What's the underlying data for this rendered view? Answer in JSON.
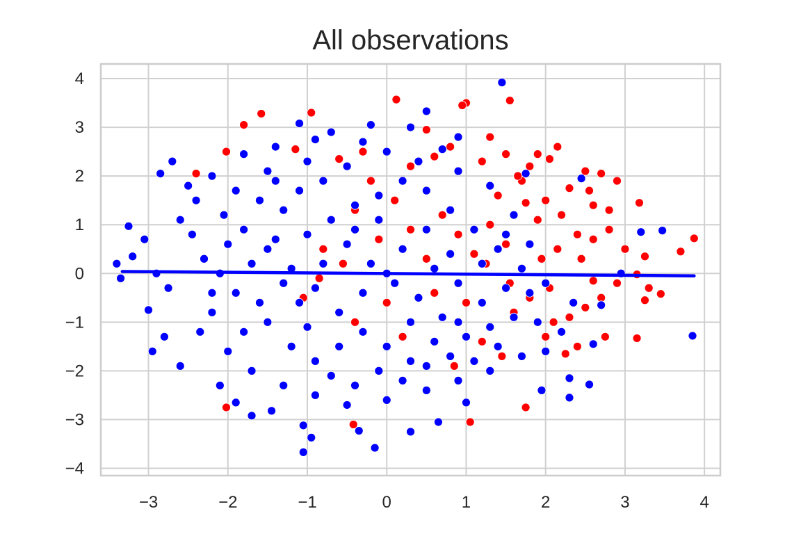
{
  "chart_data": {
    "type": "scatter",
    "title": "All observations",
    "xlabel": "",
    "ylabel": "",
    "xlim": [
      -3.6,
      4.2
    ],
    "ylim": [
      -4.15,
      4.3
    ],
    "grid": true,
    "legend": "none",
    "x_ticks": [
      -3,
      -2,
      -1,
      0,
      1,
      2,
      3,
      4
    ],
    "x_tick_labels": [
      "−3",
      "−2",
      "−1",
      "0",
      "1",
      "2",
      "3",
      "4"
    ],
    "y_ticks": [
      -4,
      -3,
      -2,
      -1,
      0,
      1,
      2,
      3,
      4
    ],
    "y_tick_labels": [
      "−4",
      "−3",
      "−2",
      "−1",
      "0",
      "1",
      "2",
      "3",
      "4"
    ],
    "colors": {
      "class_red": "#ff0000",
      "class_blue": "#0000ff",
      "grid": "#d0d0d0",
      "frame": "#cccccc"
    },
    "series": [
      {
        "color": "#ff0000",
        "points": [
          [
            1.0,
            3.5
          ],
          [
            1.55,
            3.55
          ],
          [
            0.12,
            3.57
          ],
          [
            -0.95,
            3.3
          ],
          [
            -1.58,
            3.28
          ],
          [
            0.95,
            3.45
          ],
          [
            -1.8,
            3.05
          ],
          [
            0.5,
            2.95
          ],
          [
            1.3,
            2.8
          ],
          [
            -2.02,
            2.5
          ],
          [
            2.15,
            2.6
          ],
          [
            2.5,
            2.1
          ],
          [
            2.7,
            2.05
          ],
          [
            2.9,
            1.9
          ],
          [
            3.18,
            1.45
          ],
          [
            2.6,
            1.4
          ],
          [
            2.8,
            1.3
          ],
          [
            2.3,
            1.75
          ],
          [
            2.55,
            1.7
          ],
          [
            1.8,
            2.2
          ],
          [
            2.0,
            1.5
          ],
          [
            1.7,
            1.9
          ],
          [
            1.2,
            2.3
          ],
          [
            0.8,
            2.6
          ],
          [
            0.6,
            2.4
          ],
          [
            0.3,
            2.2
          ],
          [
            -0.3,
            2.5
          ],
          [
            -0.6,
            2.35
          ],
          [
            -1.15,
            2.55
          ],
          [
            -2.4,
            2.05
          ],
          [
            1.5,
            2.45
          ],
          [
            1.9,
            1.1
          ],
          [
            2.2,
            1.2
          ],
          [
            2.4,
            0.8
          ],
          [
            2.6,
            0.7
          ],
          [
            2.8,
            0.9
          ],
          [
            3.0,
            0.5
          ],
          [
            3.25,
            0.35
          ],
          [
            3.7,
            0.45
          ],
          [
            3.87,
            0.72
          ],
          [
            3.15,
            -0.02
          ],
          [
            3.3,
            -0.3
          ],
          [
            3.45,
            -0.42
          ],
          [
            3.25,
            -0.55
          ],
          [
            2.9,
            -0.2
          ],
          [
            2.7,
            -0.5
          ],
          [
            2.5,
            -0.7
          ],
          [
            2.3,
            -0.9
          ],
          [
            2.1,
            -1.0
          ],
          [
            2.0,
            -1.3
          ],
          [
            2.4,
            -1.5
          ],
          [
            2.25,
            -1.65
          ],
          [
            2.75,
            -1.3
          ],
          [
            3.15,
            -1.33
          ],
          [
            1.8,
            -0.5
          ],
          [
            1.6,
            -0.8
          ],
          [
            1.5,
            0.6
          ],
          [
            1.3,
            1.0
          ],
          [
            1.1,
            0.4
          ],
          [
            0.9,
            0.8
          ],
          [
            0.7,
            1.2
          ],
          [
            0.5,
            0.3
          ],
          [
            0.3,
            0.9
          ],
          [
            0.1,
            1.5
          ],
          [
            -0.1,
            0.7
          ],
          [
            -0.2,
            1.9
          ],
          [
            -0.4,
            1.3
          ],
          [
            -0.55,
            0.2
          ],
          [
            -0.8,
            0.5
          ],
          [
            -0.85,
            -0.1
          ],
          [
            -1.05,
            -0.5
          ],
          [
            -0.4,
            -1.0
          ],
          [
            0.0,
            -0.6
          ],
          [
            0.2,
            -1.3
          ],
          [
            0.6,
            -0.4
          ],
          [
            1.0,
            -0.6
          ],
          [
            1.2,
            -1.4
          ],
          [
            0.85,
            -1.9
          ],
          [
            1.45,
            -1.7
          ],
          [
            -2.02,
            -2.75
          ],
          [
            -0.42,
            -3.1
          ],
          [
            1.05,
            -3.05
          ],
          [
            1.75,
            -2.75
          ],
          [
            1.9,
            2.45
          ],
          [
            2.05,
            2.35
          ],
          [
            1.65,
            2.0
          ],
          [
            1.4,
            1.6
          ],
          [
            1.75,
            1.45
          ],
          [
            1.95,
            0.3
          ],
          [
            2.15,
            0.5
          ],
          [
            2.45,
            0.3
          ],
          [
            2.6,
            -0.15
          ],
          [
            2.05,
            -0.3
          ],
          [
            1.55,
            -0.2
          ],
          [
            1.25,
            0.2
          ]
        ]
      },
      {
        "color": "#0000ff",
        "points": [
          [
            1.45,
            3.92
          ],
          [
            0.5,
            3.33
          ],
          [
            -1.1,
            3.08
          ],
          [
            -0.2,
            3.05
          ],
          [
            0.3,
            3.0
          ],
          [
            -0.7,
            2.9
          ],
          [
            -2.7,
            2.3
          ],
          [
            -2.85,
            2.05
          ],
          [
            -3.25,
            0.97
          ],
          [
            -3.05,
            0.7
          ],
          [
            -3.2,
            0.35
          ],
          [
            -3.35,
            -0.1
          ],
          [
            -3.0,
            -0.75
          ],
          [
            -2.95,
            -1.6
          ],
          [
            -2.8,
            -1.3
          ],
          [
            -2.6,
            -1.9
          ],
          [
            -2.9,
            0.0
          ],
          [
            -2.75,
            -0.3
          ],
          [
            -3.4,
            0.2
          ],
          [
            3.47,
            0.88
          ],
          [
            3.2,
            0.85
          ],
          [
            3.85,
            -1.28
          ],
          [
            2.95,
            0.0
          ],
          [
            2.7,
            -0.65
          ],
          [
            2.6,
            -1.45
          ],
          [
            2.55,
            -2.28
          ],
          [
            2.3,
            -2.55
          ],
          [
            2.3,
            -2.15
          ],
          [
            1.95,
            -2.4
          ],
          [
            1.0,
            -2.65
          ],
          [
            0.65,
            -3.05
          ],
          [
            0.3,
            -3.25
          ],
          [
            -0.15,
            -3.58
          ],
          [
            -0.35,
            -3.23
          ],
          [
            -0.95,
            -3.37
          ],
          [
            -1.05,
            -3.67
          ],
          [
            -1.05,
            -3.12
          ],
          [
            -1.45,
            -2.82
          ],
          [
            -1.7,
            -2.92
          ],
          [
            -1.9,
            -2.65
          ],
          [
            -2.1,
            -2.3
          ],
          [
            2.45,
            1.95
          ],
          [
            1.75,
            2.05
          ],
          [
            0.9,
            2.8
          ],
          [
            0.7,
            2.55
          ],
          [
            -0.3,
            2.7
          ],
          [
            -0.9,
            2.75
          ],
          [
            -1.4,
            2.6
          ],
          [
            -1.8,
            2.45
          ],
          [
            -2.2,
            2.0
          ],
          [
            -2.5,
            1.8
          ],
          [
            -2.4,
            1.5
          ],
          [
            -2.6,
            1.1
          ],
          [
            -2.45,
            0.8
          ],
          [
            -2.3,
            0.3
          ],
          [
            -2.1,
            0.0
          ],
          [
            -1.9,
            -0.4
          ],
          [
            -2.2,
            -0.8
          ],
          [
            -2.35,
            -1.2
          ],
          [
            -2.0,
            -1.6
          ],
          [
            -1.7,
            -2.0
          ],
          [
            -1.3,
            -2.3
          ],
          [
            -0.9,
            -2.5
          ],
          [
            -0.5,
            -2.7
          ],
          [
            0.0,
            -2.6
          ],
          [
            0.5,
            -2.4
          ],
          [
            0.9,
            -2.2
          ],
          [
            1.3,
            -2.0
          ],
          [
            1.7,
            -1.7
          ],
          [
            2.0,
            -1.6
          ],
          [
            2.2,
            -1.2
          ],
          [
            2.35,
            -0.6
          ],
          [
            2.0,
            -0.2
          ],
          [
            1.8,
            0.6
          ],
          [
            1.6,
            1.2
          ],
          [
            1.3,
            1.8
          ],
          [
            0.9,
            2.1
          ],
          [
            0.4,
            2.3
          ],
          [
            0.0,
            2.5
          ],
          [
            -0.5,
            2.2
          ],
          [
            -1.0,
            2.3
          ],
          [
            -1.5,
            2.1
          ],
          [
            -1.9,
            1.7
          ],
          [
            -2.05,
            1.2
          ],
          [
            -1.8,
            0.9
          ],
          [
            -1.5,
            0.5
          ],
          [
            -1.2,
            0.1
          ],
          [
            -0.9,
            -0.3
          ],
          [
            -0.6,
            -0.8
          ],
          [
            -0.3,
            -1.2
          ],
          [
            0.0,
            -1.5
          ],
          [
            0.3,
            -1.8
          ],
          [
            0.6,
            -1.4
          ],
          [
            0.9,
            -1.0
          ],
          [
            1.2,
            -0.6
          ],
          [
            1.5,
            -0.3
          ],
          [
            1.7,
            0.1
          ],
          [
            1.4,
            0.5
          ],
          [
            1.1,
            0.9
          ],
          [
            0.8,
            1.3
          ],
          [
            0.5,
            1.7
          ],
          [
            0.2,
            1.9
          ],
          [
            -0.1,
            1.6
          ],
          [
            -0.4,
            1.4
          ],
          [
            -0.7,
            1.1
          ],
          [
            -1.0,
            0.8
          ],
          [
            -1.3,
            1.3
          ],
          [
            -1.6,
            1.5
          ],
          [
            -1.4,
            1.9
          ],
          [
            -1.1,
            1.7
          ],
          [
            -0.8,
            1.9
          ],
          [
            -0.5,
            0.6
          ],
          [
            -0.2,
            0.2
          ],
          [
            0.1,
            -0.2
          ],
          [
            0.4,
            -0.5
          ],
          [
            0.7,
            -0.9
          ],
          [
            1.0,
            -1.3
          ],
          [
            1.3,
            -1.1
          ],
          [
            1.6,
            -0.9
          ],
          [
            1.9,
            -1.0
          ],
          [
            -0.3,
            -0.4
          ],
          [
            -0.6,
            -1.5
          ],
          [
            -0.9,
            -1.8
          ],
          [
            -1.2,
            -1.5
          ],
          [
            -1.5,
            -1.0
          ],
          [
            -1.8,
            -1.2
          ],
          [
            -1.6,
            -0.6
          ],
          [
            -1.3,
            -0.2
          ],
          [
            -1.0,
            -1.1
          ],
          [
            -0.7,
            -2.1
          ],
          [
            -0.4,
            -2.3
          ],
          [
            -0.1,
            -2.0
          ],
          [
            0.2,
            -2.2
          ],
          [
            0.5,
            -1.9
          ],
          [
            0.8,
            -1.7
          ],
          [
            1.1,
            -1.8
          ],
          [
            1.4,
            -1.5
          ],
          [
            0.2,
            0.5
          ],
          [
            0.5,
            0.9
          ],
          [
            0.8,
            0.4
          ],
          [
            -0.1,
            1.1
          ],
          [
            -0.4,
            0.9
          ],
          [
            -0.8,
            0.2
          ],
          [
            -1.1,
            -0.6
          ],
          [
            -1.4,
            0.7
          ],
          [
            -1.7,
            0.2
          ],
          [
            -2.0,
            0.6
          ],
          [
            -2.2,
            -0.4
          ],
          [
            0.0,
            0.0
          ],
          [
            0.3,
            -1.0
          ],
          [
            0.6,
            0.1
          ],
          [
            0.9,
            -0.2
          ],
          [
            1.2,
            0.2
          ],
          [
            1.5,
            0.8
          ],
          [
            1.8,
            -0.4
          ]
        ]
      }
    ],
    "regression_line": {
      "x": [
        -3.33,
        3.87
      ],
      "y": [
        0.04,
        -0.05
      ],
      "color": "#0000ff"
    }
  }
}
